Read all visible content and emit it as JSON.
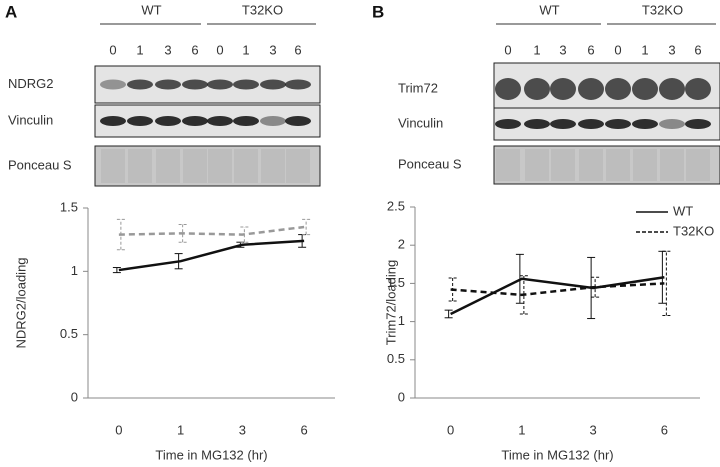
{
  "panels": [
    {
      "label": "A",
      "groups": [
        "WT",
        "T32KO"
      ],
      "lanes": [
        "0",
        "1",
        "3",
        "6",
        "0",
        "1",
        "3",
        "6"
      ],
      "blots": [
        "NDRG2",
        "Vinculin",
        "Ponceau S"
      ]
    },
    {
      "label": "B",
      "groups": [
        "WT",
        "T32KO"
      ],
      "lanes": [
        "0",
        "1",
        "3",
        "6",
        "0",
        "1",
        "3",
        "6"
      ],
      "blots": [
        "Trim72",
        "Vinculin",
        "Ponceau S"
      ]
    }
  ],
  "chart_data": [
    {
      "type": "line",
      "y_label": "NDRG2/loading",
      "x_label": "Time in MG132 (hr)",
      "categories": [
        "0",
        "1",
        "3",
        "6"
      ],
      "ylim": [
        0,
        1.5
      ],
      "yticks": [
        0,
        0.5,
        1,
        1.5
      ],
      "legend": false,
      "series": [
        {
          "color": "#111111",
          "dashed": false,
          "values": [
            1.01,
            1.08,
            1.21,
            1.24
          ],
          "errors": [
            0.02,
            0.06,
            0.02,
            0.05
          ]
        },
        {
          "color": "#999999",
          "dashed": true,
          "values": [
            1.29,
            1.3,
            1.29,
            1.35
          ],
          "errors": [
            0.12,
            0.07,
            0.06,
            0.06
          ]
        }
      ]
    },
    {
      "type": "line",
      "y_label": "Trim72/loading",
      "x_label": "Time in MG132 (hr)",
      "categories": [
        "0",
        "1",
        "3",
        "6"
      ],
      "ylim": [
        0,
        2.5
      ],
      "yticks": [
        0,
        0.5,
        1,
        1.5,
        2,
        2.5
      ],
      "legend": true,
      "series": [
        {
          "name": "WT",
          "color": "#111111",
          "dashed": false,
          "values": [
            1.1,
            1.56,
            1.44,
            1.58
          ],
          "errors": [
            0.05,
            0.32,
            0.4,
            0.34
          ]
        },
        {
          "name": "T32KO",
          "color": "#111111",
          "dashed": true,
          "values": [
            1.42,
            1.35,
            1.45,
            1.5
          ],
          "errors": [
            0.15,
            0.25,
            0.13,
            0.42
          ]
        }
      ]
    }
  ]
}
